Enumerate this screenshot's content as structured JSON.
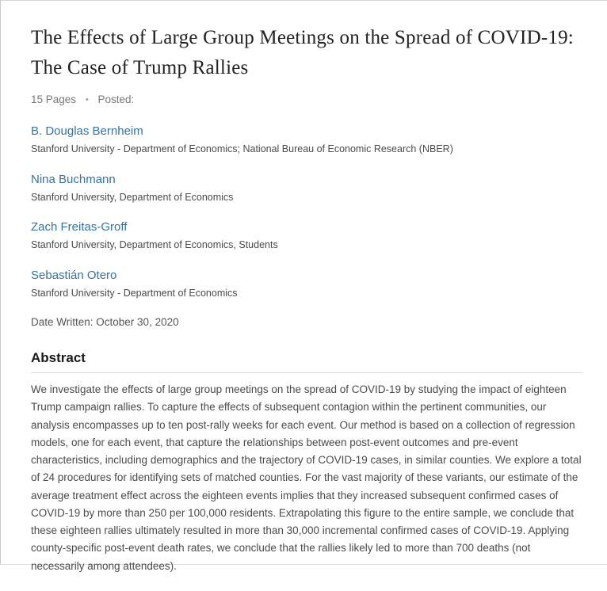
{
  "paper": {
    "title": "The Effects of Large Group Meetings on the Spread of COVID-19: The Case of Trump Rallies",
    "meta": {
      "pages": "15 Pages",
      "separator": "•",
      "posted": "Posted:"
    },
    "authors": [
      {
        "name": "B. Douglas Bernheim",
        "affiliation": "Stanford University - Department of Economics; National Bureau of Economic Research (NBER)"
      },
      {
        "name": "Nina Buchmann",
        "affiliation": "Stanford University, Department of Economics"
      },
      {
        "name": "Zach Freitas-Groff",
        "affiliation": "Stanford University, Department of Economics, Students"
      },
      {
        "name": "Sebastián Otero",
        "affiliation": "Stanford University - Department of Economics"
      }
    ],
    "date_written": "Date Written: October 30, 2020",
    "abstract": {
      "heading": "Abstract",
      "text": "We investigate the effects of large group meetings on the spread of COVID-19 by studying the impact of eighteen Trump campaign rallies. To capture the effects of subsequent contagion within the pertinent communities, our analysis encompasses up to ten post-rally weeks for each event. Our method is based on a collection of regression models, one for each event, that capture the relationships between post-event outcomes and pre-event characteristics, including demographics and the trajectory of COVID-19 cases, in similar counties. We explore a total of 24 procedures for identifying sets of matched counties. For the vast majority of these variants, our estimate of the average treatment effect across the eighteen events implies that they increased subsequent confirmed cases of COVID-19 by more than 250 per 100,000 residents. Extrapolating this figure to the entire sample, we conclude that these eighteen rallies ultimately resulted in more than 30,000 incremental confirmed cases of COVID-19. Applying county-specific post-event death rates, we conclude that the rallies likely led to more than 700 deaths (not necessarily among attendees)."
    }
  },
  "colors": {
    "link": "#3273a8",
    "body_text": "#4a4a4a",
    "muted_text": "#777777",
    "title_text": "#222222"
  }
}
